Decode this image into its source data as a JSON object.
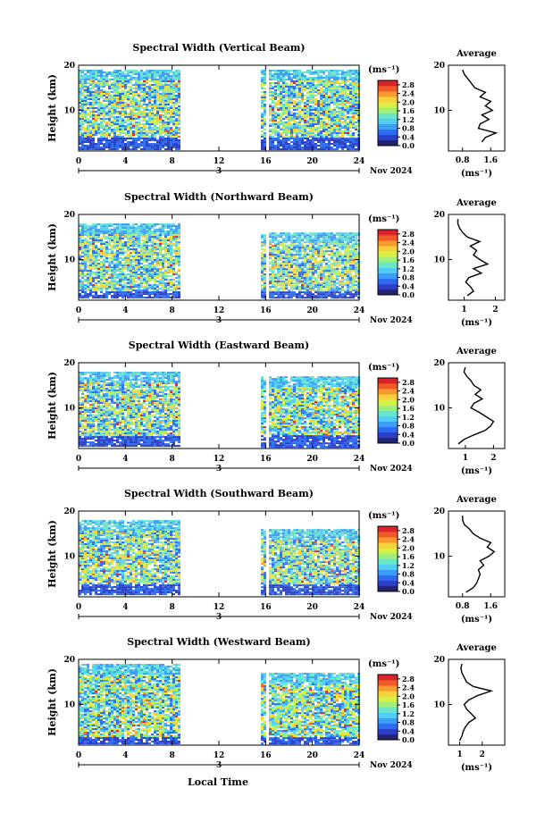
{
  "figure": {
    "xlabel": "Local Time",
    "date_label": "Nov 2024",
    "day_marker": "3"
  },
  "colorbar": {
    "unit": "(ms⁻¹)",
    "ticks": [
      "2.8",
      "2.4",
      "2.0",
      "1.6",
      "1.2",
      "0.8",
      "0.4",
      "0.0"
    ],
    "range": [
      0.0,
      3.0
    ],
    "colors": [
      "#23236e",
      "#2b3ec8",
      "#2d6cf0",
      "#3c9ef5",
      "#52cdf4",
      "#6ae6c8",
      "#9ef07a",
      "#d8f046",
      "#f8d23a",
      "#f89a2e",
      "#f05a26",
      "#d8242a"
    ]
  },
  "chart_data": [
    {
      "type": "heatmap",
      "title": "Spectral Width (Vertical Beam)",
      "ylabel": "Height (km)",
      "x_range": [
        0,
        24
      ],
      "x_ticks": [
        0,
        4,
        8,
        12,
        16,
        20,
        24
      ],
      "y_range": [
        1,
        20
      ],
      "y_ticks": [
        10,
        20
      ],
      "data_gaps": [
        [
          8.6,
          15.6
        ],
        [
          16.1,
          16.3
        ]
      ],
      "top_km": [
        19,
        19
      ],
      "quiet_below_km": 3,
      "avg": {
        "title": "Average",
        "xlabel": "(ms⁻¹)",
        "x_range": [
          0.4,
          2.0
        ],
        "x_ticks": [
          0.8,
          1.6
        ],
        "h": [
          3,
          4,
          5,
          6,
          7,
          8,
          9,
          10,
          11,
          12,
          13,
          14,
          15,
          16,
          17,
          18,
          19
        ],
        "v": [
          1.35,
          1.45,
          1.75,
          1.25,
          1.3,
          1.55,
          1.35,
          1.65,
          1.45,
          1.6,
          1.3,
          1.45,
          1.15,
          1.05,
          0.95,
          0.85,
          0.8
        ]
      }
    },
    {
      "type": "heatmap",
      "title": "Spectral Width (Northward Beam)",
      "ylabel": "Height (km)",
      "x_range": [
        0,
        24
      ],
      "x_ticks": [
        0,
        4,
        8,
        12,
        16,
        20,
        24
      ],
      "y_range": [
        1,
        20
      ],
      "y_ticks": [
        10,
        20
      ],
      "data_gaps": [
        [
          8.6,
          15.6
        ],
        [
          16.1,
          16.3
        ]
      ],
      "top_km": [
        18,
        16
      ],
      "quiet_below_km": 2,
      "avg": {
        "title": "Average",
        "xlabel": "(ms⁻¹)",
        "x_range": [
          0.5,
          2.3
        ],
        "x_ticks": [
          1,
          2
        ],
        "h": [
          2,
          3,
          4,
          5,
          6,
          7,
          8,
          9,
          10,
          11,
          12,
          13,
          14,
          15,
          16,
          17,
          18,
          19
        ],
        "v": [
          1.1,
          1.3,
          1.2,
          1.05,
          1.15,
          1.55,
          1.3,
          1.75,
          1.5,
          1.3,
          1.4,
          1.2,
          1.5,
          1.1,
          0.95,
          0.85,
          0.8,
          0.8
        ]
      }
    },
    {
      "type": "heatmap",
      "title": "Spectral Width (Eastward Beam)",
      "ylabel": "Height (km)",
      "x_range": [
        0,
        24
      ],
      "x_ticks": [
        0,
        4,
        8,
        12,
        16,
        20,
        24
      ],
      "y_range": [
        1,
        20
      ],
      "y_ticks": [
        10,
        20
      ],
      "data_gaps": [
        [
          8.6,
          15.6
        ],
        [
          16.1,
          16.3
        ]
      ],
      "top_km": [
        18,
        17
      ],
      "quiet_below_km": 3,
      "avg": {
        "title": "Average",
        "xlabel": "(ms⁻¹)",
        "x_range": [
          0.4,
          2.4
        ],
        "x_ticks": [
          1,
          2
        ],
        "h": [
          2,
          3,
          4,
          5,
          6,
          7,
          8,
          9,
          10,
          11,
          12,
          13,
          14,
          15,
          16,
          17,
          18,
          19
        ],
        "v": [
          0.75,
          0.95,
          1.3,
          1.7,
          1.9,
          2.0,
          1.75,
          1.5,
          1.2,
          1.3,
          1.6,
          1.35,
          1.55,
          1.3,
          1.2,
          1.05,
          0.95,
          1.0
        ]
      }
    },
    {
      "type": "heatmap",
      "title": "Spectral Width (Southward Beam)",
      "ylabel": "Height (km)",
      "x_range": [
        0,
        24
      ],
      "x_ticks": [
        0,
        4,
        8,
        12,
        16,
        20,
        24
      ],
      "y_range": [
        1,
        20
      ],
      "y_ticks": [
        10,
        20
      ],
      "data_gaps": [
        [
          8.6,
          15.6
        ],
        [
          16.1,
          16.3
        ]
      ],
      "top_km": [
        18,
        16
      ],
      "quiet_below_km": 3,
      "avg": {
        "title": "Average",
        "xlabel": "(ms⁻¹)",
        "x_range": [
          0.4,
          2.0
        ],
        "x_ticks": [
          0.8,
          1.6
        ],
        "h": [
          2,
          3,
          4,
          5,
          6,
          7,
          8,
          9,
          10,
          11,
          12,
          13,
          14,
          15,
          16,
          17,
          18,
          19
        ],
        "v": [
          0.9,
          1.1,
          1.2,
          1.25,
          1.3,
          1.25,
          1.4,
          1.3,
          1.55,
          1.7,
          1.5,
          1.6,
          1.3,
          1.1,
          1.0,
          0.85,
          0.8,
          0.8
        ]
      }
    },
    {
      "type": "heatmap",
      "title": "Spectral Width (Westward Beam)",
      "ylabel": "Height (km)",
      "x_range": [
        0,
        24
      ],
      "x_ticks": [
        0,
        4,
        8,
        12,
        16,
        20,
        24
      ],
      "y_range": [
        1,
        20
      ],
      "y_ticks": [
        10,
        20
      ],
      "data_gaps": [
        [
          8.6,
          15.6
        ],
        [
          16.1,
          16.3
        ]
      ],
      "top_km": [
        19,
        17
      ],
      "quiet_below_km": 2,
      "avg": {
        "title": "Average",
        "xlabel": "(ms⁻¹)",
        "x_range": [
          0.5,
          3.0
        ],
        "x_ticks": [
          1,
          2
        ],
        "h": [
          2,
          3,
          4,
          5,
          6,
          7,
          8,
          9,
          10,
          11,
          12,
          13,
          14,
          15,
          16,
          17,
          18,
          19
        ],
        "v": [
          1.0,
          1.1,
          1.15,
          1.25,
          1.4,
          1.7,
          1.5,
          1.3,
          1.2,
          1.4,
          1.8,
          2.4,
          1.6,
          1.3,
          1.2,
          1.1,
          1.05,
          1.1
        ]
      }
    }
  ]
}
